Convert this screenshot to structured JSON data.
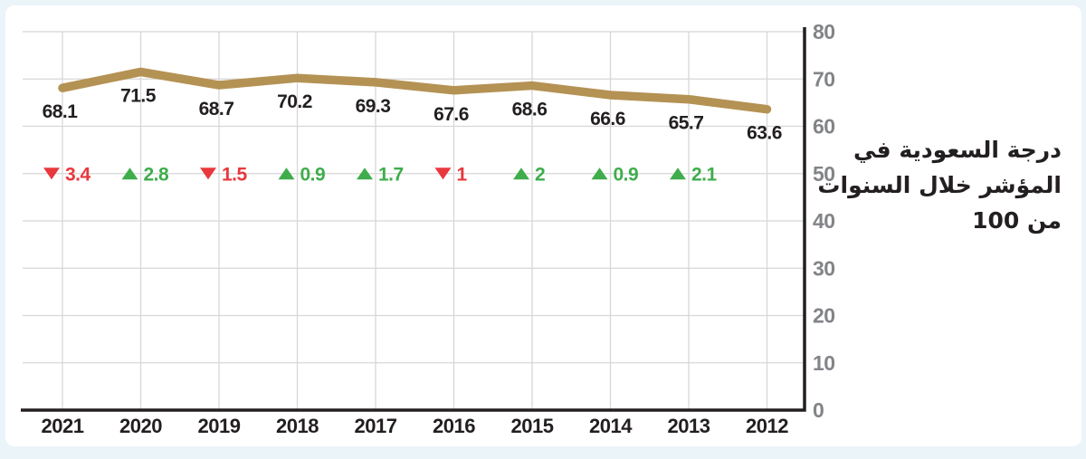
{
  "page": {
    "background_color": "#ebf4f8",
    "card_background_color": "#ffffff"
  },
  "annotation": {
    "full_text": "درجة السعودية في المؤشر خلال السنوات من 100",
    "lines": [
      "درجة السعودية في",
      "المؤشر خلال السنوات",
      "من 100"
    ]
  },
  "chart_data": {
    "type": "line",
    "title": "درجة السعودية في المؤشر خلال السنوات من 100",
    "categories": [
      "2021",
      "2020",
      "2019",
      "2018",
      "2017",
      "2016",
      "2015",
      "2014",
      "2013",
      "2012"
    ],
    "values": [
      68.1,
      71.5,
      68.7,
      70.2,
      69.3,
      67.6,
      68.6,
      66.6,
      65.7,
      63.6
    ],
    "value_labels": [
      "68.1",
      "71.5",
      "68.7",
      "70.2",
      "69.3",
      "67.6",
      "68.6",
      "66.6",
      "65.7",
      "63.6"
    ],
    "deltas": [
      {
        "year": "2021",
        "direction": "down",
        "label": "3.4"
      },
      {
        "year": "2020",
        "direction": "up",
        "label": "2.8"
      },
      {
        "year": "2019",
        "direction": "down",
        "label": "1.5"
      },
      {
        "year": "2018",
        "direction": "up",
        "label": "0.9"
      },
      {
        "year": "2017",
        "direction": "up",
        "label": "1.7"
      },
      {
        "year": "2016",
        "direction": "down",
        "label": "1"
      },
      {
        "year": "2015",
        "direction": "up",
        "label": "2"
      },
      {
        "year": "2014",
        "direction": "up",
        "label": "0.9"
      },
      {
        "year": "2013",
        "direction": "up",
        "label": "2.1"
      }
    ],
    "delta_row_value": 50,
    "y_ticks": [
      0,
      10,
      20,
      30,
      40,
      50,
      60,
      70,
      80
    ],
    "ylim": [
      0,
      80
    ],
    "grid": true,
    "legend": "none",
    "y_axis_side": "right",
    "x_axis_order": "right-to-left-years",
    "colors": {
      "line": "#b49254",
      "up": "#3fad4c",
      "down": "#e8383d",
      "axis": "#231f20",
      "grid": "#d7d7d7",
      "tick_label": "#828487",
      "value_label": "#231f20",
      "year_label": "#231f20"
    }
  }
}
